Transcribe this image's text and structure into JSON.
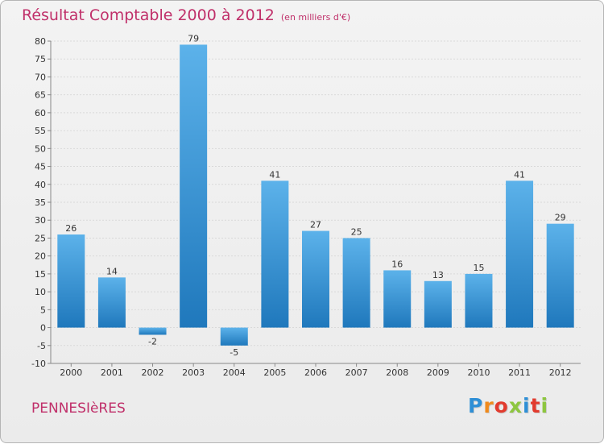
{
  "header": {
    "title": "Résultat Comptable 2000 à 2012",
    "subtitle": "(en milliers d'€)"
  },
  "footer": {
    "place": "PENNESIèRES",
    "logo_letters": [
      "P",
      "r",
      "o",
      "x",
      "i",
      "t",
      "i"
    ],
    "logo_colors": [
      "#2e8fd6",
      "#f08a1c",
      "#e23b2e",
      "#8dc63f",
      "#2e8fd6",
      "#e23b2e",
      "#8dc63f"
    ]
  },
  "colors": {
    "bar_light": "#5cb2ea",
    "bar_dark": "#1f78bc",
    "title": "#c0306a",
    "grid": "#d9d9d9"
  },
  "chart_data": {
    "type": "bar",
    "title": "Résultat Comptable 2000 à 2012",
    "xlabel": "",
    "ylabel": "",
    "ylim": [
      -10,
      80
    ],
    "y_step": 5,
    "grid": true,
    "categories": [
      "2000",
      "2001",
      "2002",
      "2003",
      "2004",
      "2005",
      "2006",
      "2007",
      "2008",
      "2009",
      "2010",
      "2011",
      "2012"
    ],
    "values": [
      26,
      14,
      -2,
      79,
      -5,
      41,
      27,
      25,
      16,
      13,
      15,
      41,
      29
    ]
  }
}
